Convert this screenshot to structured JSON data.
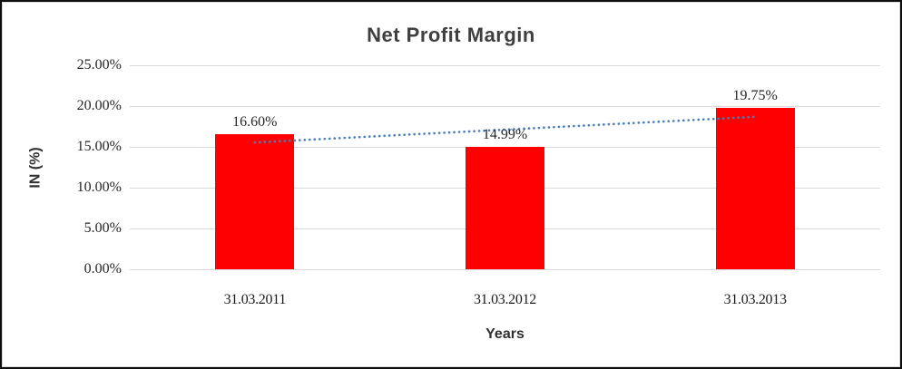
{
  "chart_data": {
    "type": "bar",
    "title": "Net Profit Margin",
    "xlabel": "Years",
    "ylabel": "IN (%)",
    "categories": [
      "31.03.2011",
      "31.03.2012",
      "31.03.2013"
    ],
    "values": [
      16.6,
      14.99,
      19.75
    ],
    "data_labels": [
      "16.60%",
      "14.99%",
      "19.75%"
    ],
    "y_ticks": [
      "0.00%",
      "5.00%",
      "10.00%",
      "15.00%",
      "20.00%",
      "25.00%"
    ],
    "ylim": [
      0,
      25
    ],
    "y_tick_step": 5,
    "grid": "horizontal",
    "legend": "none",
    "bar_color": "#ff0000",
    "gridline_color": "#d9d9d9",
    "trendline": {
      "type": "linear",
      "style": "dotted",
      "color": "#4a7ebb"
    }
  }
}
